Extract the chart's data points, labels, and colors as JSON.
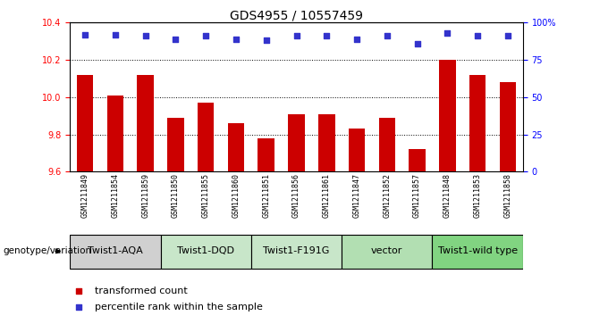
{
  "title": "GDS4955 / 10557459",
  "samples": [
    "GSM1211849",
    "GSM1211854",
    "GSM1211859",
    "GSM1211850",
    "GSM1211855",
    "GSM1211860",
    "GSM1211851",
    "GSM1211856",
    "GSM1211861",
    "GSM1211847",
    "GSM1211852",
    "GSM1211857",
    "GSM1211848",
    "GSM1211853",
    "GSM1211858"
  ],
  "bar_values": [
    10.12,
    10.01,
    10.12,
    9.89,
    9.97,
    9.86,
    9.78,
    9.91,
    9.91,
    9.83,
    9.89,
    9.72,
    10.2,
    10.12,
    10.08
  ],
  "percentile_values": [
    92,
    92,
    91,
    89,
    91,
    89,
    88,
    91,
    91,
    89,
    91,
    86,
    93,
    91,
    91
  ],
  "bar_color": "#cc0000",
  "point_color": "#3333cc",
  "ymin": 9.6,
  "ymax": 10.4,
  "yticks": [
    9.6,
    9.8,
    10.0,
    10.2,
    10.4
  ],
  "right_yticks": [
    0,
    25,
    50,
    75,
    100
  ],
  "groups": [
    {
      "label": "Twist1-AQA",
      "start": 0,
      "end": 3,
      "color": "#d0d0d0"
    },
    {
      "label": "Twist1-DQD",
      "start": 3,
      "end": 6,
      "color": "#c8e6c9"
    },
    {
      "label": "Twist1-F191G",
      "start": 6,
      "end": 9,
      "color": "#c8e6c9"
    },
    {
      "label": "vector",
      "start": 9,
      "end": 12,
      "color": "#b2dfb2"
    },
    {
      "label": "Twist1-wild type",
      "start": 12,
      "end": 15,
      "color": "#81d481"
    }
  ],
  "genotype_label": "genotype/variation",
  "legend_items": [
    {
      "label": "transformed count",
      "color": "#cc0000"
    },
    {
      "label": "percentile rank within the sample",
      "color": "#3333cc"
    }
  ],
  "title_fontsize": 10,
  "tick_fontsize": 7,
  "sample_fontsize": 6,
  "group_fontsize": 8,
  "legend_fontsize": 8
}
